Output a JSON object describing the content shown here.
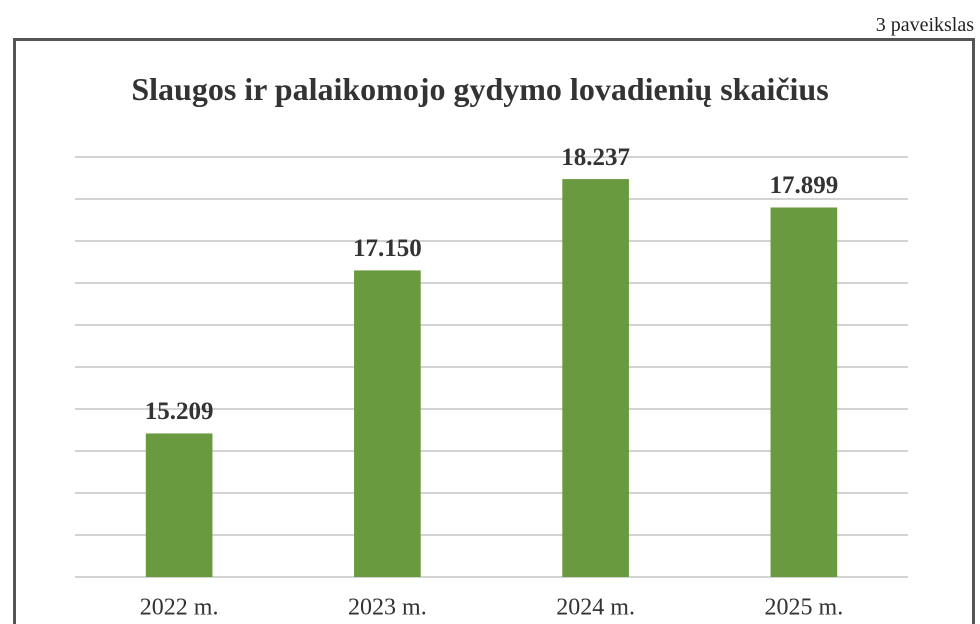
{
  "figure_label": "3 paveikslas",
  "chart_data": {
    "type": "bar",
    "title": "Slaugos ir palaikomojo gydymo lovadienių skaičius",
    "categories": [
      "2022 m.",
      "2023 m.",
      "2024 m.",
      "2025 m."
    ],
    "values": [
      15209,
      17150,
      18237,
      17899
    ],
    "value_labels": [
      "15.209",
      "17.150",
      "18.237",
      "17.899"
    ],
    "color": "#6a9a3f",
    "ylim": [
      13500,
      18500
    ],
    "yticks": [
      13500,
      14000,
      14500,
      15000,
      15500,
      16000,
      16500,
      17000,
      17500,
      18000,
      18500
    ],
    "grid": true
  }
}
